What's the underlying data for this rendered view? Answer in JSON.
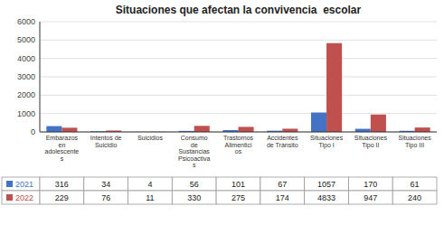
{
  "chart_data": {
    "type": "bar",
    "title": "Situaciones que afectan la convivencia  escolar",
    "categories": [
      "Embarazos\nen\nadolescente\ns",
      "Intentos de\nSuicidio",
      "Suicidios",
      "Consumo\nde\nSustancias\nPsicoactiva\ns",
      "Trastornos\nAlimentici\nos",
      "Accidentes\nde Tránsito",
      "Situaciones\nTipo I",
      "Situaciones\nTipo II",
      "Situaciones\nTipo III"
    ],
    "series": [
      {
        "name": "2021",
        "color": "#4472c4",
        "values": [
          316,
          34,
          4,
          56,
          101,
          67,
          1057,
          170,
          61
        ]
      },
      {
        "name": "2022",
        "color": "#c0504d",
        "values": [
          229,
          76,
          11,
          330,
          275,
          174,
          4833,
          947,
          240
        ]
      }
    ],
    "ylim": [
      0,
      6000
    ],
    "yticks": [
      0,
      1000,
      2000,
      3000,
      4000,
      5000,
      6000
    ],
    "grid": true,
    "data_labels": true
  }
}
